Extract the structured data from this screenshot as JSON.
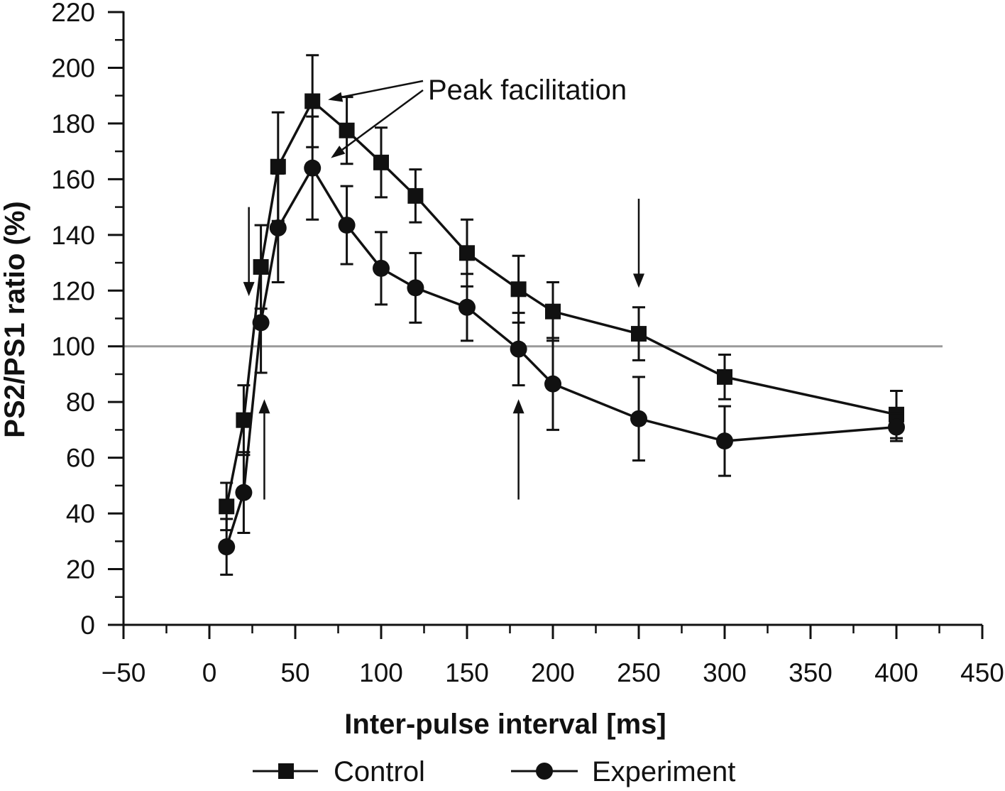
{
  "chart_data": {
    "type": "line",
    "title": "",
    "xlabel": "Inter-pulse interval [ms]",
    "ylabel": "PS2/PS1 ratio (%)",
    "xlim": [
      -50,
      450
    ],
    "ylim": [
      0,
      220
    ],
    "x_ticks": [
      -50,
      0,
      50,
      100,
      150,
      200,
      250,
      300,
      350,
      400,
      450
    ],
    "x_tick_labels": [
      "−50",
      "0",
      "50",
      "100",
      "150",
      "200",
      "250",
      "300",
      "350",
      "400",
      "450"
    ],
    "y_ticks": [
      0,
      20,
      40,
      60,
      80,
      100,
      120,
      140,
      160,
      180,
      200,
      220
    ],
    "y_tick_labels": [
      "0",
      "20",
      "40",
      "60",
      "80",
      "100",
      "120",
      "140",
      "160",
      "180",
      "200",
      "220"
    ],
    "reference_line": 100,
    "grid": false,
    "legend_position": "bottom",
    "series": [
      {
        "name": "Control",
        "marker": "square",
        "x": [
          10,
          20,
          30,
          40,
          60,
          80,
          100,
          120,
          150,
          180,
          200,
          250,
          300,
          400
        ],
        "y": [
          42.5,
          73.5,
          128.5,
          164.5,
          188,
          177.5,
          166,
          154,
          133.5,
          120.5,
          112.5,
          104.5,
          89,
          75.5
        ],
        "err_upper": [
          8.5,
          12.5,
          15,
          19.5,
          16.5,
          12,
          12.5,
          9.5,
          12,
          12,
          10.5,
          9.5,
          8,
          8.5
        ],
        "err_lower": [
          8.5,
          12.5,
          15,
          19.5,
          16.5,
          12,
          12.5,
          9.5,
          12,
          12,
          10.5,
          9.5,
          8,
          8.5
        ]
      },
      {
        "name": "Experiment",
        "marker": "circle",
        "x": [
          10,
          20,
          30,
          40,
          60,
          80,
          100,
          120,
          150,
          180,
          200,
          250,
          300,
          400
        ],
        "y": [
          28,
          47.5,
          108.5,
          142.5,
          164,
          143.5,
          128,
          121,
          114,
          99,
          86.5,
          74,
          66,
          71
        ],
        "err_upper": [
          10,
          14.5,
          18,
          19.5,
          18.5,
          14,
          13,
          12.5,
          12,
          13,
          16.5,
          15,
          12.5,
          5
        ],
        "err_lower": [
          10,
          14.5,
          18,
          19.5,
          18.5,
          14,
          13,
          12.5,
          12,
          13,
          16.5,
          15,
          12.5,
          5
        ]
      }
    ],
    "annotations": [
      {
        "text": "Peak facilitation",
        "pointers": [
          {
            "series": "Control",
            "x": 60,
            "y": 188
          },
          {
            "series": "Experiment",
            "x": 60,
            "y": 164
          }
        ]
      }
    ],
    "arrows": [
      {
        "direction": "down",
        "x": 23,
        "from_y": 150,
        "to_y": 118
      },
      {
        "direction": "up",
        "x": 32,
        "from_y": 45,
        "to_y": 81
      },
      {
        "direction": "up",
        "x": 180,
        "from_y": 45,
        "to_y": 81
      },
      {
        "direction": "down",
        "x": 250,
        "from_y": 153,
        "to_y": 121
      }
    ]
  }
}
